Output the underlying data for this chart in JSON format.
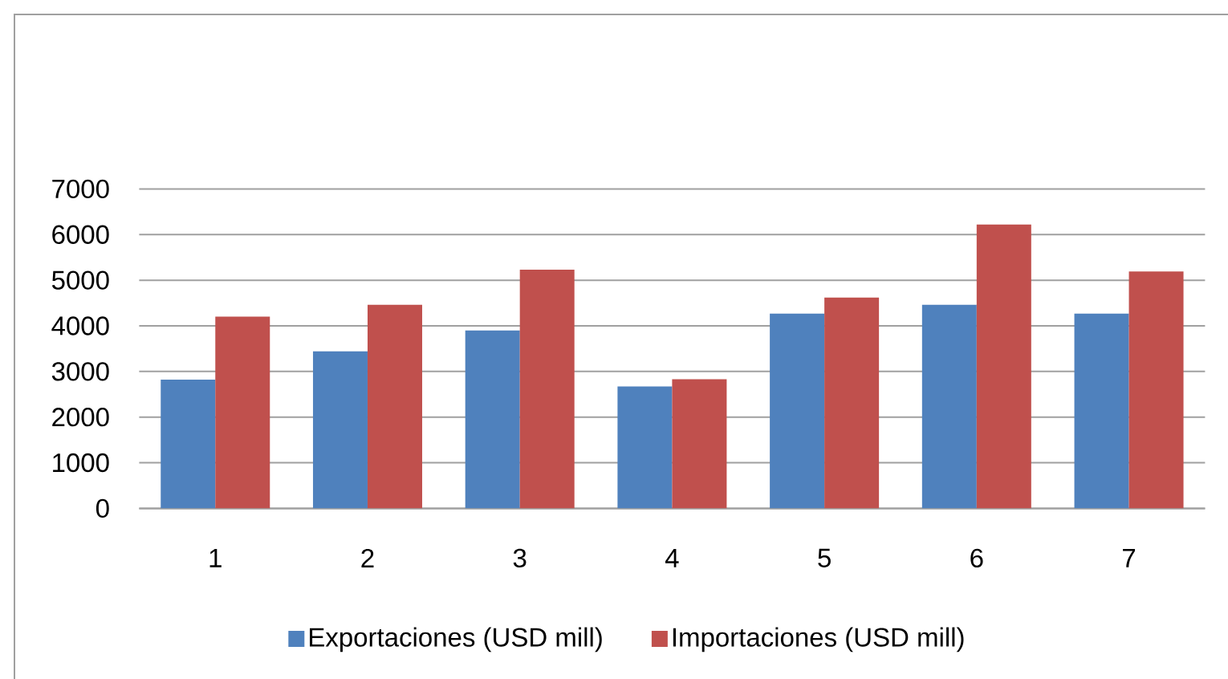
{
  "chart_data": {
    "type": "bar",
    "categories": [
      "1",
      "2",
      "3",
      "4",
      "5",
      "6",
      "7"
    ],
    "series": [
      {
        "name": "Exportaciones (USD mill)",
        "color": "#4f81bd",
        "values": [
          2820,
          3440,
          3900,
          2670,
          4270,
          4460,
          4270
        ]
      },
      {
        "name": "Importaciones (USD mill)",
        "color": "#c0504d",
        "values": [
          4200,
          4460,
          5230,
          2830,
          4620,
          6220,
          5190
        ]
      }
    ],
    "ylim": [
      0,
      7000
    ],
    "yticks": [
      0,
      1000,
      2000,
      3000,
      4000,
      5000,
      6000,
      7000
    ],
    "grid": "y",
    "legend": "bottom"
  }
}
